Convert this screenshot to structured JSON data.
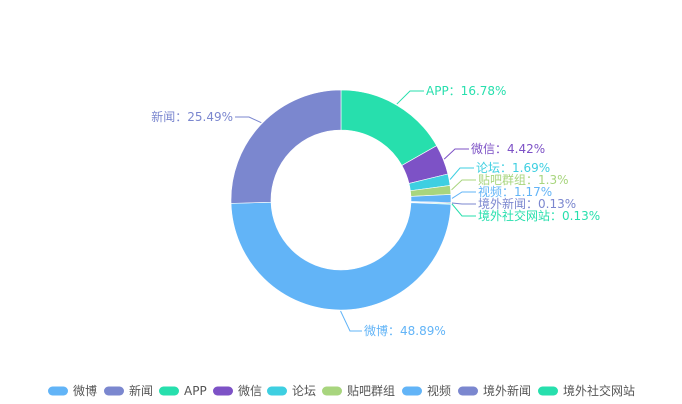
{
  "chart_data": {
    "type": "pie",
    "variant": "donut",
    "legend_position": "bottom",
    "label_separator": "：",
    "slices": [
      {
        "name": "微博",
        "value": 48.89,
        "label": "微博：48.89%",
        "color": "#62b4f7"
      },
      {
        "name": "新闻",
        "value": 25.49,
        "label": "新闻：25.49%",
        "color": "#7b87cf"
      },
      {
        "name": "APP",
        "value": 16.78,
        "label": "APP：16.78%",
        "color": "#27dfad"
      },
      {
        "name": "微信",
        "value": 4.42,
        "label": "微信：4.42%",
        "color": "#7d52c6"
      },
      {
        "name": "论坛",
        "value": 1.69,
        "label": "论坛：1.69%",
        "color": "#3ecfe1"
      },
      {
        "name": "贴吧群组",
        "value": 1.3,
        "label": "贴吧群组：1.3%",
        "color": "#a8d57e"
      },
      {
        "name": "视频",
        "value": 1.17,
        "label": "视频：1.17%",
        "color": "#62b4f7"
      },
      {
        "name": "境外新闻",
        "value": 0.13,
        "label": "境外新闻：0.13%",
        "color": "#7b87cf"
      },
      {
        "name": "境外社交网站",
        "value": 0.13,
        "label": "境外社交网站：0.13%",
        "color": "#27dfad"
      }
    ]
  }
}
